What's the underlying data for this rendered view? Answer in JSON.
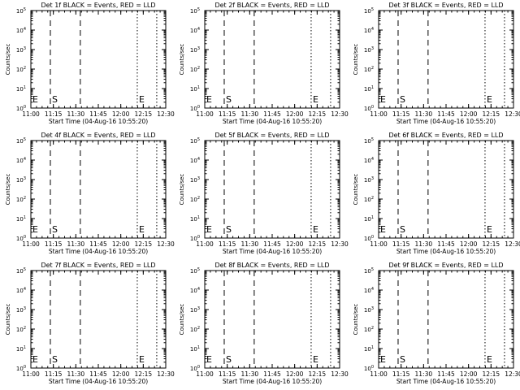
{
  "chart_data": {
    "type": "line",
    "colors": {
      "events": "#000000",
      "lld": "#ff0000",
      "background": "#ffffff"
    },
    "ylabel": "Counts/sec",
    "xlabel": "Start Time (04-Aug-16 10:55:20)",
    "x_axis": {
      "range": [
        "11:00",
        "12:30"
      ],
      "ticks": [
        "11:00",
        "11:15",
        "11:30",
        "11:45",
        "12:00",
        "12:15",
        "12:30"
      ],
      "minor_ticks_per_major": 3
    },
    "y_axis": {
      "scale": "log",
      "range": [
        1,
        100000
      ],
      "ticks": [
        {
          "base": "10",
          "exp": "0"
        },
        {
          "base": "10",
          "exp": "1"
        },
        {
          "base": "10",
          "exp": "2"
        },
        {
          "base": "10",
          "exp": "3"
        },
        {
          "base": "10",
          "exp": "4"
        },
        {
          "base": "10",
          "exp": "5"
        }
      ]
    },
    "grid": false,
    "panels": [
      {
        "title": "Det 1f BLACK = Events, RED = LLD"
      },
      {
        "title": "Det 2f BLACK = Events, RED = LLD"
      },
      {
        "title": "Det 3f BLACK = Events, RED = LLD"
      },
      {
        "title": "Det 4f BLACK = Events, RED = LLD"
      },
      {
        "title": "Det 5f BLACK = Events, RED = LLD"
      },
      {
        "title": "Det 6f BLACK = Events, RED = LLD"
      },
      {
        "title": "Det 7f BLACK = Events, RED = LLD"
      },
      {
        "title": "Det 8f BLACK = Events, RED = LLD"
      },
      {
        "title": "Det 9f BLACK = Events, RED = LLD"
      }
    ],
    "markers": [
      {
        "time": "11:00",
        "style": "dotted",
        "label": "E"
      },
      {
        "time": "11:13",
        "style": "dashed",
        "label": "S"
      },
      {
        "time": "11:33",
        "style": "dashed",
        "label": ""
      },
      {
        "time": "12:11",
        "style": "dotted",
        "label": "E"
      },
      {
        "time": "12:24",
        "style": "dotted",
        "label": ""
      }
    ]
  }
}
